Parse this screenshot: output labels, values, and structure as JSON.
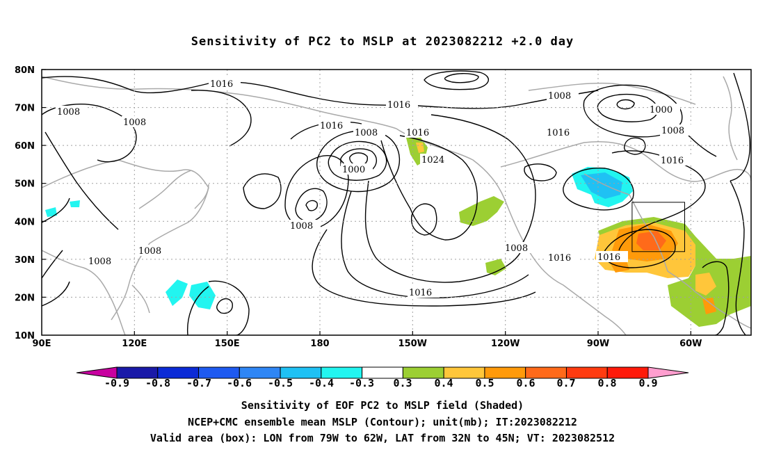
{
  "title": "Sensitivity of PC2 to MSLP at 2023082212 +2.0 day",
  "map": {
    "lat_ticks": [
      "80N",
      "70N",
      "60N",
      "50N",
      "40N",
      "30N",
      "20N",
      "10N"
    ],
    "lon_ticks": [
      "90E",
      "120E",
      "150E",
      "180",
      "150W",
      "120W",
      "90W",
      "60W"
    ],
    "valid_box": {
      "lon_from": "79W",
      "lon_to": "62W",
      "lat_from": "32N",
      "lat_to": "45N"
    },
    "contour_labels": [
      "1016",
      "1016",
      "1016",
      "1016",
      "1016",
      "1016",
      "1016",
      "1016",
      "1008",
      "1008",
      "1008",
      "1008",
      "1008",
      "1008",
      "1008",
      "1008",
      "1000",
      "1000",
      "1024"
    ]
  },
  "colorbar": {
    "labels": [
      "-0.9",
      "-0.8",
      "-0.7",
      "-0.6",
      "-0.5",
      "-0.4",
      "-0.3",
      "0.3",
      "0.4",
      "0.5",
      "0.6",
      "0.7",
      "0.8",
      "0.9"
    ],
    "colors": [
      "#1a1aa8",
      "#0b2bd6",
      "#1e5af0",
      "#2f86f5",
      "#1fc1f4",
      "#22f5f0",
      "#ffffff",
      "#9ccf33",
      "#ffc63a",
      "#ff9a0a",
      "#ff6a1a",
      "#ff3b10",
      "#ff1a0a"
    ],
    "left_tip": "#c800a0",
    "right_tip": "#ff9ecf"
  },
  "captions": [
    "Sensitivity of EOF PC2 to MSLP field (Shaded)",
    "NCEP+CMC ensemble mean MSLP (Contour); unit(mb); IT:2023082212",
    "Valid area (box): LON from 79W to 62W, LAT from 32N to 45N; VT: 2023082512"
  ]
}
